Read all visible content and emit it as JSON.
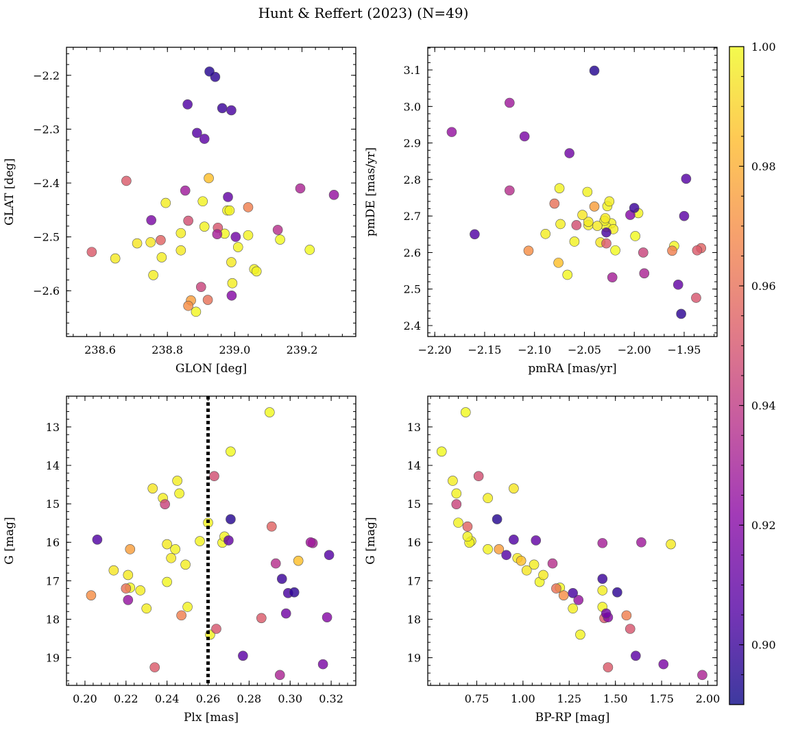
{
  "title": "Hunt & Reffert (2023) (N=49)",
  "chart_data": {
    "type": "scatter",
    "colorbar": {
      "cmap": "plasma",
      "range": [
        0.89,
        1.0
      ],
      "ticks": [
        0.9,
        0.92,
        0.94,
        0.96,
        0.98,
        1.0
      ],
      "tick_labels": [
        "0.90",
        "0.92",
        "0.94",
        "0.96",
        "0.98",
        "1.00"
      ]
    },
    "stars": [
      {
        "glon": 238.925,
        "glat": -2.193,
        "pmra": -2.04,
        "pmde": 3.098,
        "plx": 0.271,
        "g": 15.4,
        "bprp": 0.86,
        "p": 0.895
      },
      {
        "glon": 238.942,
        "glat": -2.203,
        "pmra": -1.953,
        "pmde": 2.432,
        "plx": 0.302,
        "g": 17.3,
        "bprp": 1.51,
        "p": 0.897
      },
      {
        "glon": 238.86,
        "glat": -2.254,
        "pmra": -2.16,
        "pmde": 2.65,
        "plx": 0.206,
        "g": 15.93,
        "bprp": 0.95,
        "p": 0.905
      },
      {
        "glon": 238.963,
        "glat": -2.261,
        "pmra": -2.0,
        "pmde": 2.722,
        "plx": 0.296,
        "g": 16.95,
        "bprp": 1.43,
        "p": 0.9
      },
      {
        "glon": 238.99,
        "glat": -2.265,
        "pmra": -2.028,
        "pmde": 2.655,
        "plx": 0.299,
        "g": 17.32,
        "bprp": 1.27,
        "p": 0.903
      },
      {
        "glon": 238.888,
        "glat": -2.307,
        "pmra": -1.948,
        "pmde": 2.802,
        "plx": 0.319,
        "g": 16.33,
        "bprp": 0.91,
        "p": 0.906
      },
      {
        "glon": 238.91,
        "glat": -2.318,
        "pmra": -1.95,
        "pmde": 2.7,
        "plx": 0.277,
        "g": 18.95,
        "bprp": 1.61,
        "p": 0.908
      },
      {
        "glon": 238.98,
        "glat": -2.426,
        "pmra": -1.956,
        "pmde": 2.512,
        "plx": 0.27,
        "g": 15.95,
        "bprp": 1.07,
        "p": 0.91
      },
      {
        "glon": 239.003,
        "glat": -2.5,
        "pmra": -2.065,
        "pmde": 2.872,
        "plx": 0.298,
        "g": 17.85,
        "bprp": 1.45,
        "p": 0.914
      },
      {
        "glon": 238.752,
        "glat": -2.469,
        "pmra": -2.11,
        "pmde": 2.918,
        "plx": 0.316,
        "g": 19.17,
        "bprp": 1.76,
        "p": 0.917
      },
      {
        "glon": 238.991,
        "glat": -2.609,
        "pmra": -2.004,
        "pmde": 2.703,
        "plx": 0.318,
        "g": 17.95,
        "bprp": 1.46,
        "p": 0.92
      },
      {
        "glon": 239.295,
        "glat": -2.422,
        "pmra": -2.183,
        "pmde": 2.93,
        "plx": 0.221,
        "g": 17.5,
        "bprp": 1.3,
        "p": 0.925
      },
      {
        "glon": 238.853,
        "glat": -2.414,
        "pmra": -2.125,
        "pmde": 3.01,
        "plx": 0.31,
        "g": 16.0,
        "bprp": 1.64,
        "p": 0.928
      },
      {
        "glon": 238.948,
        "glat": -2.495,
        "pmra": -2.022,
        "pmde": 2.532,
        "plx": 0.311,
        "g": 16.02,
        "bprp": 1.43,
        "p": 0.93
      },
      {
        "glon": 239.195,
        "glat": -2.41,
        "pmra": -1.99,
        "pmde": 2.543,
        "plx": 0.295,
        "g": 19.45,
        "bprp": 1.97,
        "p": 0.932
      },
      {
        "glon": 239.128,
        "glat": -2.487,
        "pmra": -2.125,
        "pmde": 2.77,
        "plx": 0.293,
        "g": 16.55,
        "bprp": 1.16,
        "p": 0.936
      },
      {
        "glon": 238.9,
        "glat": -2.593,
        "pmra": -1.991,
        "pmde": 2.6,
        "plx": 0.239,
        "g": 15.01,
        "bprp": 0.64,
        "p": 0.944
      },
      {
        "glon": 238.862,
        "glat": -2.47,
        "pmra": -2.058,
        "pmde": 2.675,
        "plx": 0.263,
        "g": 14.28,
        "bprp": 0.76,
        "p": 0.948
      },
      {
        "glon": 238.95,
        "glat": -2.483,
        "pmra": -1.938,
        "pmde": 2.476,
        "plx": 0.264,
        "g": 18.25,
        "bprp": 1.58,
        "p": 0.95
      },
      {
        "glon": 238.678,
        "glat": -2.396,
        "pmra": -2.028,
        "pmde": 2.625,
        "plx": 0.286,
        "g": 17.97,
        "bprp": 1.44,
        "p": 0.952
      },
      {
        "glon": 238.78,
        "glat": -2.506,
        "pmra": -1.933,
        "pmde": 2.612,
        "plx": 0.291,
        "g": 15.59,
        "bprp": 0.7,
        "p": 0.955
      },
      {
        "glon": 238.575,
        "glat": -2.528,
        "pmra": -1.937,
        "pmde": 2.606,
        "plx": 0.234,
        "g": 19.25,
        "bprp": 1.46,
        "p": 0.952
      },
      {
        "glon": 238.92,
        "glat": -2.617,
        "pmra": -2.08,
        "pmde": 2.734,
        "plx": 0.22,
        "g": 17.2,
        "bprp": 1.18,
        "p": 0.96
      },
      {
        "glon": 239.04,
        "glat": -2.445,
        "pmra": -1.962,
        "pmde": 2.605,
        "plx": 0.247,
        "g": 17.9,
        "bprp": 1.56,
        "p": 0.965
      },
      {
        "glon": 238.862,
        "glat": -2.628,
        "pmra": -2.106,
        "pmde": 2.605,
        "plx": 0.203,
        "g": 17.38,
        "bprp": 1.22,
        "p": 0.97
      },
      {
        "glon": 238.87,
        "glat": -2.618,
        "pmra": -2.04,
        "pmde": 2.726,
        "plx": 0.222,
        "g": 16.18,
        "bprp": 0.87,
        "p": 0.975
      },
      {
        "glon": 238.923,
        "glat": -2.391,
        "pmra": -2.076,
        "pmde": 2.572,
        "plx": 0.304,
        "g": 16.48,
        "bprp": 0.99,
        "p": 0.985
      },
      {
        "glon": 238.71,
        "glat": -2.512,
        "pmra": -2.034,
        "pmde": 2.628,
        "plx": 0.214,
        "g": 16.73,
        "bprp": 1.02,
        "p": 0.995
      },
      {
        "glon": 238.75,
        "glat": -2.51,
        "pmra": -2.052,
        "pmde": 2.703,
        "plx": 0.233,
        "g": 14.6,
        "bprp": 0.95,
        "p": 0.995
      },
      {
        "glon": 238.795,
        "glat": -2.437,
        "pmra": -2.089,
        "pmde": 2.651,
        "plx": 0.245,
        "g": 14.4,
        "bprp": 0.62,
        "p": 0.997
      },
      {
        "glon": 238.84,
        "glat": -2.493,
        "pmra": -2.074,
        "pmde": 2.678,
        "plx": 0.238,
        "g": 14.85,
        "bprp": 0.81,
        "p": 0.997
      },
      {
        "glon": 238.905,
        "glat": -2.434,
        "pmra": -2.047,
        "pmde": 2.766,
        "plx": 0.246,
        "g": 14.73,
        "bprp": 0.64,
        "p": 0.998
      },
      {
        "glon": 238.645,
        "glat": -2.54,
        "pmra": -2.046,
        "pmde": 2.684,
        "plx": 0.24,
        "g": 16.05,
        "bprp": 1.8,
        "p": 0.996
      },
      {
        "glon": 238.783,
        "glat": -2.538,
        "pmra": -2.046,
        "pmde": 2.675,
        "plx": 0.227,
        "g": 17.25,
        "bprp": 1.43,
        "p": 0.997
      },
      {
        "glon": 238.84,
        "glat": -2.525,
        "pmra": -2.037,
        "pmde": 2.673,
        "plx": 0.242,
        "g": 16.41,
        "bprp": 0.97,
        "p": 0.996
      },
      {
        "glon": 238.91,
        "glat": -2.481,
        "pmra": -2.027,
        "pmde": 2.727,
        "plx": 0.244,
        "g": 16.18,
        "bprp": 0.81,
        "p": 0.998
      },
      {
        "glon": 238.758,
        "glat": -2.571,
        "pmra": -2.025,
        "pmde": 2.74,
        "plx": 0.249,
        "g": 16.58,
        "bprp": 1.06,
        "p": 0.997
      },
      {
        "glon": 238.978,
        "glat": -2.451,
        "pmra": -2.075,
        "pmde": 2.776,
        "plx": 0.256,
        "g": 15.97,
        "bprp": 0.72,
        "p": 0.998
      },
      {
        "glon": 238.985,
        "glat": -2.451,
        "pmra": -2.023,
        "pmde": 2.68,
        "plx": 0.26,
        "g": 15.49,
        "bprp": 0.65,
        "p": 0.998
      },
      {
        "glon": 239.01,
        "glat": -2.519,
        "pmra": -2.028,
        "pmde": 2.67,
        "plx": 0.267,
        "g": 16.01,
        "bprp": 0.71,
        "p": 0.998
      },
      {
        "glon": 239.04,
        "glat": -2.497,
        "pmra": -2.03,
        "pmde": 2.687,
        "plx": 0.268,
        "g": 15.85,
        "bprp": 0.7,
        "p": 0.998
      },
      {
        "glon": 238.99,
        "glat": -2.547,
        "pmra": -2.029,
        "pmde": 2.694,
        "plx": 0.221,
        "g": 16.85,
        "bprp": 1.11,
        "p": 0.996
      },
      {
        "glon": 238.993,
        "glat": -2.586,
        "pmra": -2.021,
        "pmde": 2.664,
        "plx": 0.23,
        "g": 17.72,
        "bprp": 1.27,
        "p": 0.997
      },
      {
        "glon": 239.058,
        "glat": -2.56,
        "pmra": -1.996,
        "pmde": 2.708,
        "plx": 0.25,
        "g": 17.68,
        "bprp": 1.43,
        "p": 0.998
      },
      {
        "glon": 239.065,
        "glat": -2.564,
        "pmra": -2.06,
        "pmde": 2.63,
        "plx": 0.261,
        "g": 18.4,
        "bprp": 1.31,
        "p": 0.998
      },
      {
        "glon": 239.135,
        "glat": -2.505,
        "pmra": -2.019,
        "pmde": 2.606,
        "plx": 0.29,
        "g": 12.62,
        "bprp": 0.69,
        "p": 1.0
      },
      {
        "glon": 239.223,
        "glat": -2.524,
        "pmra": -1.999,
        "pmde": 2.645,
        "plx": 0.271,
        "g": 13.64,
        "bprp": 0.56,
        "p": 1.0
      },
      {
        "glon": 238.97,
        "glat": -2.494,
        "pmra": -2.067,
        "pmde": 2.539,
        "plx": 0.222,
        "g": 17.18,
        "bprp": 1.2,
        "p": 0.999
      },
      {
        "glon": 238.885,
        "glat": -2.639,
        "pmra": -1.96,
        "pmde": 2.618,
        "plx": 0.24,
        "g": 17.03,
        "bprp": 1.09,
        "p": 0.999
      }
    ],
    "panels": [
      {
        "xkey": "glon",
        "ykey": "glat",
        "xlim": [
          238.5,
          239.36
        ],
        "ylim": [
          -2.685,
          -2.148
        ],
        "invert_y": false,
        "xlabel": "GLON [deg]",
        "ylabel": "GLAT [deg]",
        "xticks": [
          238.6,
          238.8,
          239.0,
          239.2
        ],
        "xtick_labels": [
          "238.6",
          "238.8",
          "239.0",
          "239.2"
        ],
        "yticks": [
          -2.6,
          -2.5,
          -2.4,
          -2.3,
          -2.2
        ],
        "ytick_labels": [
          "−2.6",
          "−2.5",
          "−2.4",
          "−2.3",
          "−2.2"
        ]
      },
      {
        "xkey": "pmra",
        "ykey": "pmde",
        "xlim": [
          -2.207,
          -1.917
        ],
        "ylim": [
          2.37,
          3.162
        ],
        "invert_y": false,
        "xlabel": "pmRA [mas/yr]",
        "ylabel": "pmDE [mas/yr]",
        "xticks": [
          -2.2,
          -2.15,
          -2.1,
          -2.05,
          -2.0,
          -1.95
        ],
        "xtick_labels": [
          "−2.20",
          "−2.15",
          "−2.10",
          "−2.05",
          "−2.00",
          "−1.95"
        ],
        "yticks": [
          2.4,
          2.5,
          2.6,
          2.7,
          2.8,
          2.9,
          3.0,
          3.1
        ],
        "ytick_labels": [
          "2.4",
          "2.5",
          "2.6",
          "2.7",
          "2.8",
          "2.9",
          "3.0",
          "3.1"
        ]
      },
      {
        "xkey": "plx",
        "ykey": "g",
        "xlim": [
          0.191,
          0.332
        ],
        "ylim": [
          12.2,
          19.72
        ],
        "invert_y": true,
        "xlabel": "Plx [mas]",
        "ylabel": "G [mag]",
        "xticks": [
          0.2,
          0.22,
          0.24,
          0.26,
          0.28,
          0.3,
          0.32
        ],
        "xtick_labels": [
          "0.20",
          "0.22",
          "0.24",
          "0.26",
          "0.28",
          "0.30",
          "0.32"
        ],
        "yticks": [
          13,
          14,
          15,
          16,
          17,
          18,
          19
        ],
        "ytick_labels": [
          "13",
          "14",
          "15",
          "16",
          "17",
          "18",
          "19"
        ],
        "vline": 0.26
      },
      {
        "xkey": "bprp",
        "ykey": "g",
        "xlim": [
          0.485,
          2.05
        ],
        "ylim": [
          12.2,
          19.72
        ],
        "invert_y": true,
        "xlabel": "BP-RP [mag]",
        "ylabel": "G [mag]",
        "xticks": [
          0.75,
          1.0,
          1.25,
          1.5,
          1.75,
          2.0
        ],
        "xtick_labels": [
          "0.75",
          "1.00",
          "1.25",
          "1.50",
          "1.75",
          "2.00"
        ],
        "yticks": [
          13,
          14,
          15,
          16,
          17,
          18,
          19
        ],
        "ytick_labels": [
          "13",
          "14",
          "15",
          "16",
          "17",
          "18",
          "19"
        ]
      }
    ]
  }
}
